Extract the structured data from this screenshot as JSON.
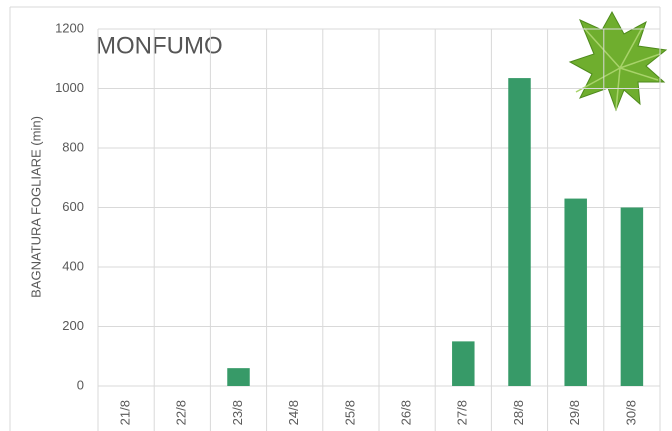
{
  "chart_data": {
    "type": "bar",
    "title": "MONFUMO",
    "y_label": "BAGNATURA FOGLIARE (min)",
    "categories": [
      "21/8",
      "22/8",
      "23/8",
      "24/8",
      "25/8",
      "26/8",
      "27/8",
      "28/8",
      "29/8",
      "30/8"
    ],
    "values": [
      0,
      0,
      60,
      0,
      0,
      0,
      150,
      1035,
      630,
      600
    ],
    "color": "#379a68",
    "ylim": [
      0,
      1200
    ],
    "yticks": [
      0,
      200,
      400,
      600,
      800,
      1000,
      1200
    ],
    "grid": true
  }
}
